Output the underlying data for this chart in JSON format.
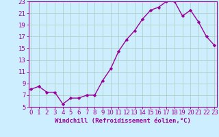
{
  "x": [
    0,
    1,
    2,
    3,
    4,
    5,
    6,
    7,
    8,
    9,
    10,
    11,
    12,
    13,
    14,
    15,
    16,
    17,
    18,
    19,
    20,
    21,
    22,
    23
  ],
  "y": [
    8,
    8.5,
    7.5,
    7.5,
    5.5,
    6.5,
    6.5,
    7,
    7,
    9.5,
    11.5,
    14.5,
    16.5,
    18,
    20,
    21.5,
    22,
    23,
    23,
    20.5,
    21.5,
    19.5,
    17,
    15.5
  ],
  "xlabel": "Windchill (Refroidissement éolien,°C)",
  "ylim": [
    5,
    23
  ],
  "xlim": [
    0,
    23
  ],
  "yticks": [
    5,
    7,
    9,
    11,
    13,
    15,
    17,
    19,
    21,
    23
  ],
  "xticks": [
    0,
    1,
    2,
    3,
    4,
    5,
    6,
    7,
    8,
    9,
    10,
    11,
    12,
    13,
    14,
    15,
    16,
    17,
    18,
    19,
    20,
    21,
    22,
    23
  ],
  "line_color": "#990099",
  "bg_color": "#cceeff",
  "grid_color": "#aaccbb",
  "marker": "D",
  "marker_size": 2.2,
  "line_width": 1.0,
  "xlabel_fontsize": 6.5,
  "tick_fontsize": 6.5
}
